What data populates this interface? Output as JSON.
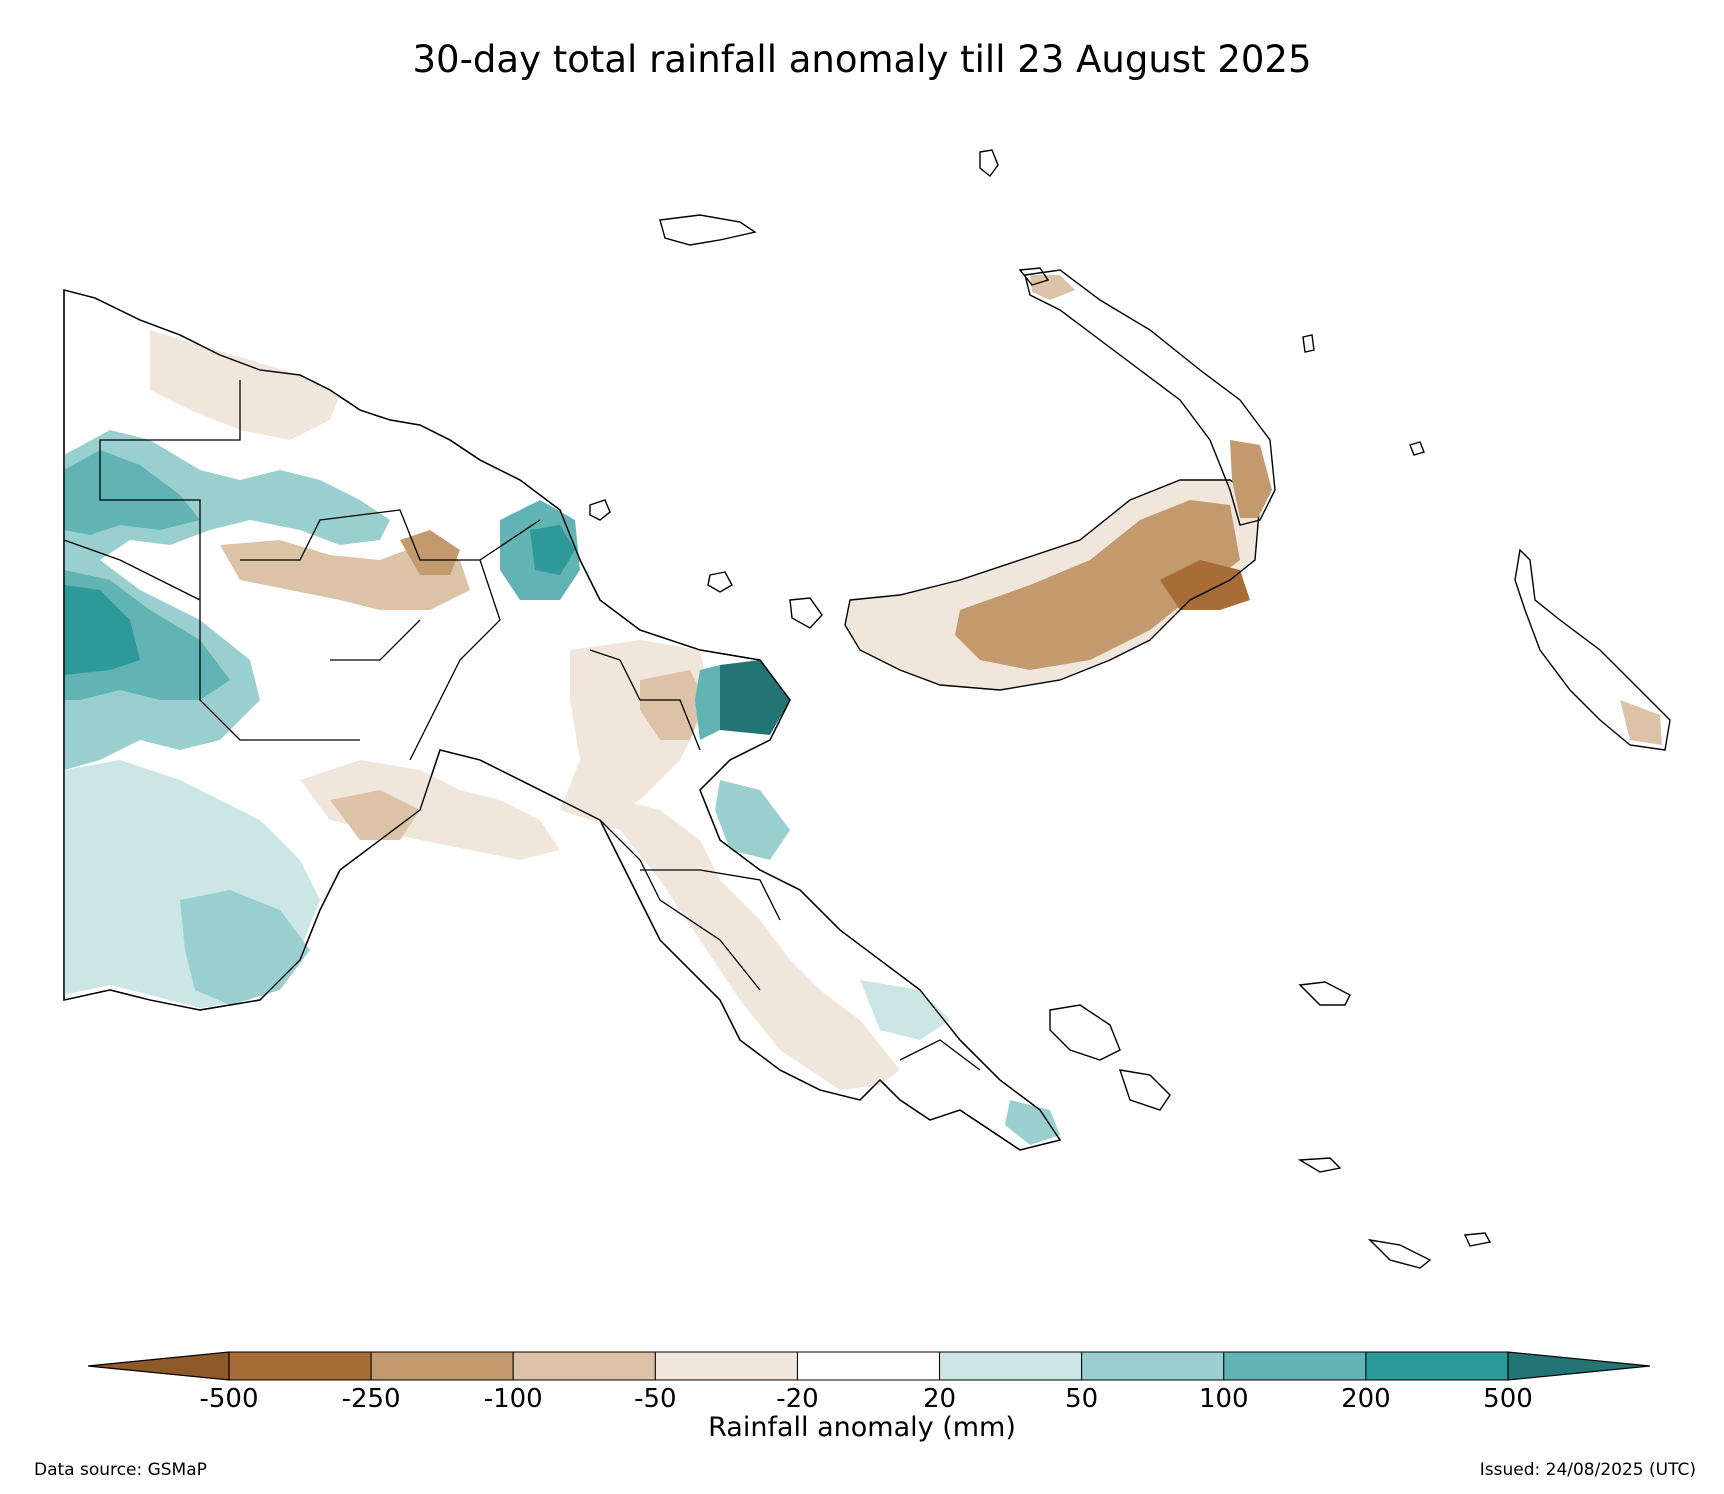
{
  "title": "30-day total rainfall anomaly till 23 August 2025",
  "colorbar": {
    "label": "Rainfall anomaly (mm)",
    "ticks": [
      "-500",
      "-250",
      "-100",
      "-50",
      "-20",
      "20",
      "50",
      "100",
      "200",
      "500"
    ],
    "colors": [
      "#a86d36",
      "#c39a6d",
      "#dcc2a6",
      "#f1e6dc",
      "#ffffff",
      "#cce6e6",
      "#99cfcf",
      "#62b3b3",
      "#2e9999"
    ],
    "under_color": "#8e5a28",
    "over_color": "#237575",
    "extend": "both"
  },
  "footer": {
    "source": "Data source: GSMaP",
    "issued": "Issued: 24/08/2025 (UTC)"
  },
  "map_layers": {
    "land_default": "#ffffff",
    "coastline_color": "#000000",
    "boundary_color": "#000000"
  }
}
